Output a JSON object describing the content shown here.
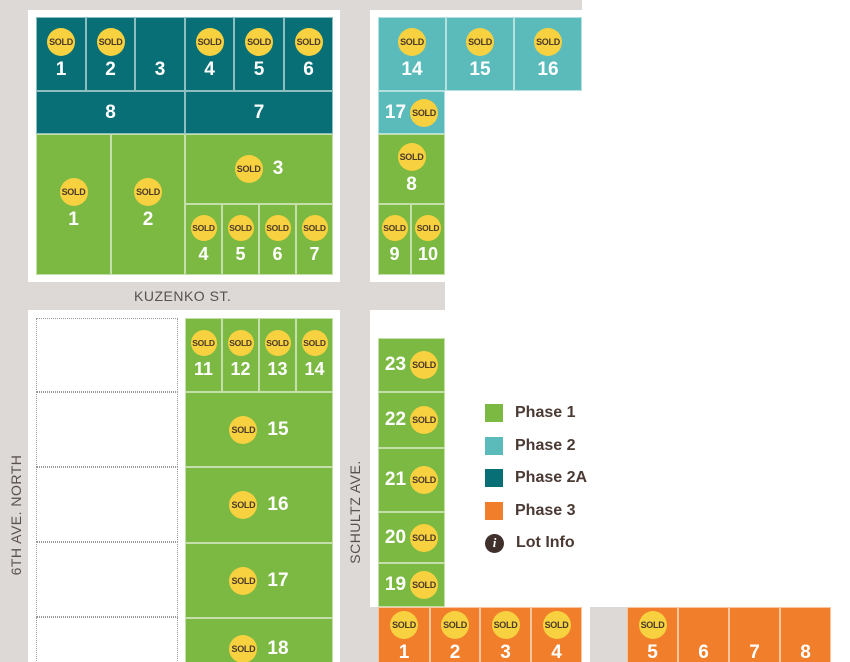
{
  "streets": {
    "cross": "KUZENKO ST.",
    "left": "6TH AVE. NORTH",
    "middle": "SCHULTZ AVE."
  },
  "sold_label": "SOLD",
  "legend": [
    {
      "label": "Phase 1",
      "color": "#7cb942"
    },
    {
      "label": "Phase 2",
      "color": "#5bbbbb"
    },
    {
      "label": "Phase 2A",
      "color": "#086f76"
    },
    {
      "label": "Phase 3",
      "color": "#f07e2b"
    },
    {
      "label": "Lot Info"
    }
  ],
  "lots": [
    {
      "number": "1",
      "sold": true,
      "phase": 2
    },
    {
      "number": "2",
      "sold": true,
      "phase": 2
    },
    {
      "number": "3",
      "sold": false,
      "phase": 2
    },
    {
      "number": "4",
      "sold": true,
      "phase": 2
    },
    {
      "number": "5",
      "sold": true,
      "phase": 2
    },
    {
      "number": "6",
      "sold": true,
      "phase": 2
    },
    {
      "number": "8",
      "sold": false,
      "phase": 2
    },
    {
      "number": "7",
      "sold": false,
      "phase": 2
    },
    {
      "number": "1",
      "sold": true,
      "phase": 0
    },
    {
      "number": "2",
      "sold": true,
      "phase": 0
    },
    {
      "number": "3",
      "sold": true,
      "phase": 0
    },
    {
      "number": "4",
      "sold": true,
      "phase": 0
    },
    {
      "number": "5",
      "sold": true,
      "phase": 0
    },
    {
      "number": "6",
      "sold": true,
      "phase": 0
    },
    {
      "number": "7",
      "sold": true,
      "phase": 0
    },
    {
      "number": "14",
      "sold": true,
      "phase": 1
    },
    {
      "number": "15",
      "sold": true,
      "phase": 1
    },
    {
      "number": "16",
      "sold": true,
      "phase": 1
    },
    {
      "number": "17",
      "sold": true,
      "phase": 1
    },
    {
      "number": "8",
      "sold": true,
      "phase": 0
    },
    {
      "number": "9",
      "sold": true,
      "phase": 0
    },
    {
      "number": "10",
      "sold": true,
      "phase": 0
    },
    {
      "number": "11",
      "sold": true,
      "phase": 0
    },
    {
      "number": "12",
      "sold": true,
      "phase": 0
    },
    {
      "number": "13",
      "sold": true,
      "phase": 0
    },
    {
      "number": "14",
      "sold": true,
      "phase": 0
    },
    {
      "number": "15",
      "sold": true,
      "phase": 0
    },
    {
      "number": "16",
      "sold": true,
      "phase": 0
    },
    {
      "number": "17",
      "sold": true,
      "phase": 0
    },
    {
      "number": "18",
      "sold": true,
      "phase": 0
    },
    {
      "number": "23",
      "sold": true,
      "phase": 0
    },
    {
      "number": "22",
      "sold": true,
      "phase": 0
    },
    {
      "number": "21",
      "sold": true,
      "phase": 0
    },
    {
      "number": "20",
      "sold": true,
      "phase": 0
    },
    {
      "number": "19",
      "sold": true,
      "phase": 0
    },
    {
      "number": "1",
      "sold": true,
      "phase": 3
    },
    {
      "number": "2",
      "sold": true,
      "phase": 3
    },
    {
      "number": "3",
      "sold": true,
      "phase": 3
    },
    {
      "number": "4",
      "sold": true,
      "phase": 3
    },
    {
      "number": "5",
      "sold": true,
      "phase": 3
    },
    {
      "number": "6",
      "sold": false,
      "phase": 3
    },
    {
      "number": "7",
      "sold": false,
      "phase": 3
    },
    {
      "number": "8",
      "sold": false,
      "phase": 3
    }
  ]
}
